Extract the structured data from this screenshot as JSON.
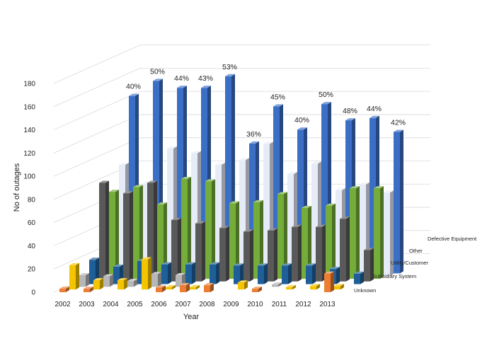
{
  "chart_data": {
    "type": "bar",
    "subtype": "3d-clustered-column",
    "title": "",
    "xlabel": "Year",
    "ylabel": "No of outages",
    "ylim": [
      0,
      180
    ],
    "yticks": [
      0,
      20,
      40,
      60,
      80,
      100,
      120,
      140,
      160,
      180
    ],
    "grid": true,
    "categories": [
      "2002",
      "2003",
      "2004",
      "2005",
      "2006",
      "2007",
      "2008",
      "2009",
      "2010",
      "2011",
      "2012",
      "2013"
    ],
    "series": [
      {
        "name": "Defective Equipment",
        "color": "#3b6fc6",
        "values": [
          153,
          166,
          160,
          160,
          170,
          112,
          144,
          124,
          146,
          132,
          134,
          122
        ]
      },
      {
        "name": "Other",
        "color": "#e6ecf7",
        "values": [
          96,
          80,
          110,
          106,
          96,
          100,
          114,
          88,
          97,
          74,
          79,
          72
        ]
      },
      {
        "name": "Other",
        "color": "#74ad3a",
        "values": [
          75,
          79,
          64,
          86,
          84,
          65,
          66,
          73,
          61,
          63,
          78,
          78
        ]
      },
      {
        "name": "Other",
        "color": "#595959",
        "values": [
          85,
          76,
          85,
          53,
          50,
          46,
          43,
          44,
          47,
          47,
          54,
          27
        ]
      },
      {
        "name": "Utility/Customer",
        "color": "#1f5f99",
        "values": [
          21,
          15,
          20,
          17,
          17,
          17,
          16,
          16,
          16,
          16,
          13,
          9
        ]
      },
      {
        "name": "Other",
        "color": "#b7b7b7",
        "values": [
          10,
          9,
          5,
          11,
          10,
          0,
          0,
          0,
          2,
          0,
          0,
          0
        ]
      },
      {
        "name": "Subsidiary System",
        "color": "#f5c400",
        "values": [
          21,
          8,
          8,
          26,
          2,
          2,
          0,
          6,
          0,
          2,
          3,
          3
        ]
      },
      {
        "name": "Unknown",
        "color": "#ed7d31",
        "values": [
          3,
          3,
          0,
          0,
          4,
          6,
          6,
          0,
          3,
          0,
          0,
          16
        ]
      }
    ],
    "annotations": [
      "40%",
      "50%",
      "44%",
      "43%",
      "53%",
      "36%",
      "45%",
      "40%",
      "50%",
      "48%",
      "44%",
      "42%"
    ],
    "series_axis_labels": [
      "Defective Equipment",
      "Other",
      "Utility/Customer",
      "Subsidiary System",
      "Unknown"
    ]
  }
}
